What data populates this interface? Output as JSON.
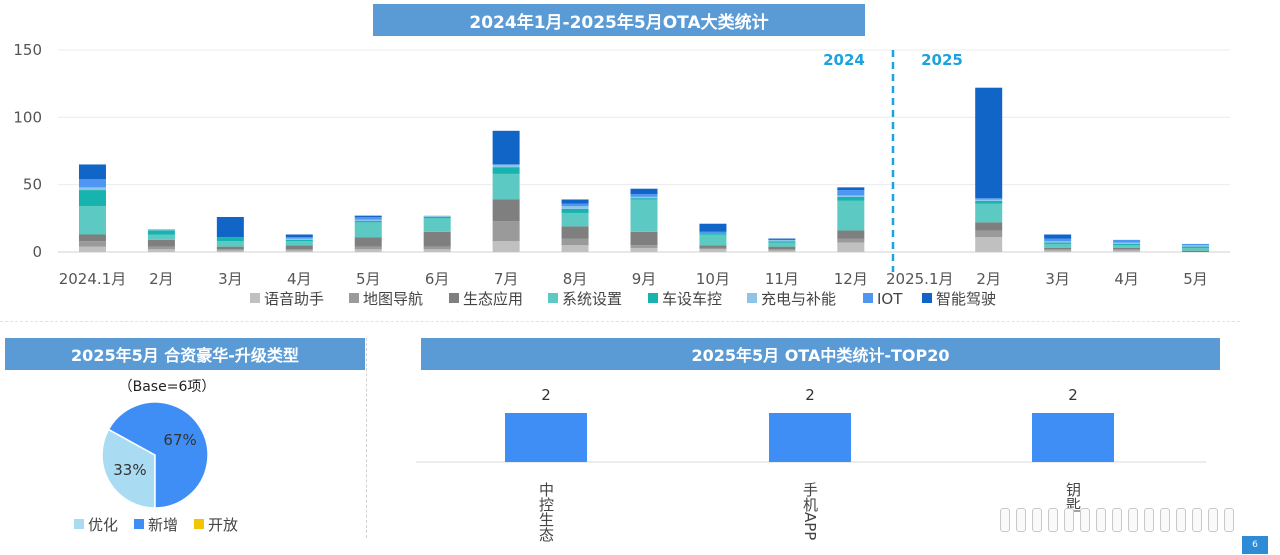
{
  "main_title": "2024年1月-2025年5月OTA大类统计",
  "pie_title": "2025年5月 合资豪华-升级类型",
  "pie_base": "（Base=6项）",
  "top_title": "2025年5月 OTA中类统计-TOP20",
  "year_labels": [
    "2024",
    "2025"
  ],
  "page_number": "6",
  "colors": {
    "banner": "#5b9bd5",
    "year": "#1aa3dc",
    "series": [
      "#c0c0c0",
      "#9a9a9a",
      "#7f7f7f",
      "#5ccac2",
      "#17b3ae",
      "#8fc4e8",
      "#4f95f2",
      "#1165c7"
    ],
    "pie": [
      "#a9dcf2",
      "#3f8ef6",
      "#f5c400"
    ],
    "bar": "#3f8ef6"
  },
  "chart_data": [
    {
      "type": "bar",
      "stacked": true,
      "title": "2024年1月-2025年5月OTA大类统计",
      "categories": [
        "2024.1月",
        "2月",
        "3月",
        "4月",
        "5月",
        "6月",
        "7月",
        "8月",
        "9月",
        "10月",
        "11月",
        "12月",
        "2025.1月",
        "2月",
        "3月",
        "4月",
        "5月"
      ],
      "yticks": [
        0,
        50,
        100,
        150
      ],
      "ylim": [
        0,
        150
      ],
      "grid": true,
      "legend_position": "bottom",
      "series": [
        {
          "name": "语音助手",
          "values": [
            4,
            2,
            1,
            1,
            2,
            2,
            8,
            5,
            3,
            2,
            1,
            7,
            0,
            11,
            1,
            1,
            0
          ]
        },
        {
          "name": "地图导航",
          "values": [
            4,
            2,
            1,
            1,
            2,
            2,
            15,
            5,
            2,
            1,
            1,
            3,
            0,
            5,
            1,
            1,
            0
          ]
        },
        {
          "name": "生态应用",
          "values": [
            5,
            5,
            2,
            3,
            7,
            11,
            16,
            9,
            10,
            2,
            2,
            6,
            0,
            6,
            1,
            1,
            1
          ]
        },
        {
          "name": "系统设置",
          "values": [
            21,
            4,
            4,
            3,
            11,
            10,
            19,
            10,
            24,
            8,
            3,
            22,
            0,
            14,
            3,
            2,
            2
          ]
        },
        {
          "name": "车设车控",
          "values": [
            12,
            3,
            3,
            1,
            1,
            1,
            5,
            3,
            1,
            1,
            1,
            3,
            0,
            2,
            1,
            1,
            1
          ]
        },
        {
          "name": "充电与补能",
          "values": [
            2,
            1,
            0,
            1,
            1,
            1,
            2,
            2,
            1,
            0,
            1,
            1,
            0,
            1,
            1,
            1,
            1
          ]
        },
        {
          "name": "IOT",
          "values": [
            6,
            0,
            0,
            1,
            2,
            0,
            0,
            2,
            2,
            1,
            0,
            4,
            0,
            1,
            2,
            2,
            1
          ]
        },
        {
          "name": "智能驾驶",
          "values": [
            11,
            0,
            15,
            2,
            1,
            0,
            25,
            3,
            4,
            6,
            1,
            2,
            0,
            82,
            3,
            0,
            0
          ]
        }
      ],
      "annotations": [
        "2024",
        "2025"
      ]
    },
    {
      "type": "pie",
      "title": "2025年5月 合资豪华-升级类型",
      "subtitle": "（Base=6项）",
      "labels": [
        "优化",
        "新增",
        "开放"
      ],
      "values": [
        33,
        67,
        0
      ],
      "data_labels": [
        "33%",
        "67%",
        ""
      ],
      "legend_position": "bottom"
    },
    {
      "type": "bar",
      "title": "2025年5月 OTA中类统计-TOP20",
      "categories": [
        "中控生态",
        "手机APP",
        "钥匙"
      ],
      "values": [
        2,
        2,
        2
      ],
      "data_labels": [
        "2",
        "2",
        "2"
      ]
    }
  ]
}
